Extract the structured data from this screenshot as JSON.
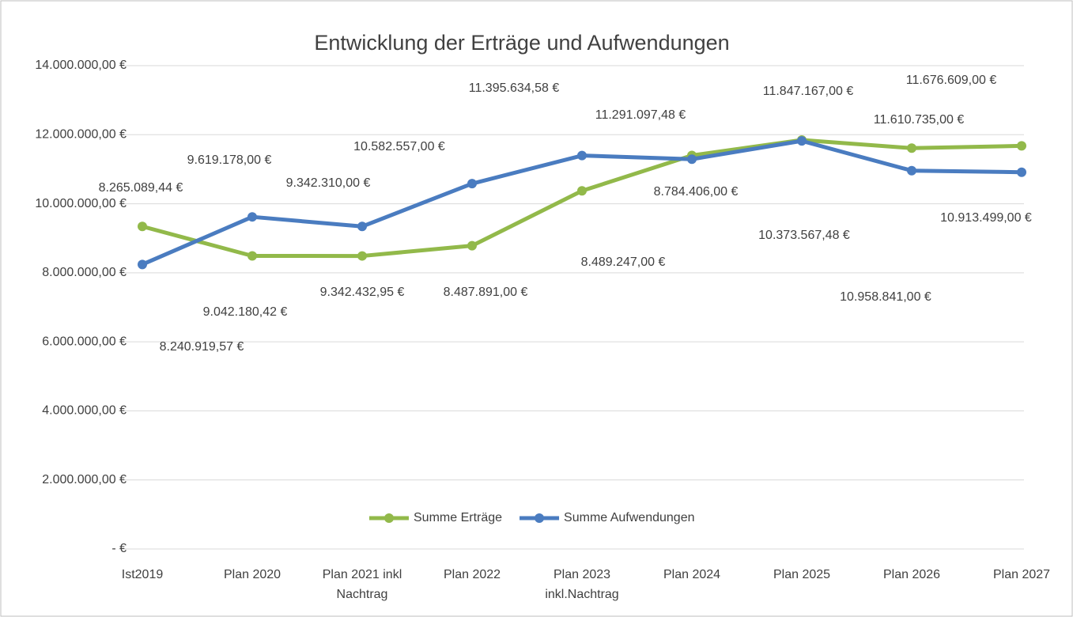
{
  "chart_data": {
    "type": "line",
    "title": "Entwicklung der Erträge und Aufwendungen",
    "categories": [
      "Ist2019",
      "Plan 2020",
      "Plan 2021 inkl\nNachtrag",
      "Plan 2022",
      "Plan 2023\ninkl.Nachtrag",
      "Plan 2024",
      "Plan 2025",
      "Plan 2026",
      "Plan 2027"
    ],
    "series": [
      {
        "name": "Summe Erträge",
        "color": "#92b94a",
        "values": [
          9342432.95,
          8489247,
          8487891,
          8784406,
          10373567.48,
          11400000,
          11847167,
          11610735,
          11676609
        ],
        "value_labels": [
          "9.342.432,95 €",
          "8.489.247,00 €",
          "8.487.891,00 €",
          "8.784.406,00 €",
          "10.373.567,48 €",
          null,
          "11.847.167,00 €",
          "11.610.735,00 €",
          "11.676.609,00 €"
        ]
      },
      {
        "name": "Summe Aufwendungen",
        "color": "#4a7cc0",
        "values": [
          8240919.57,
          9619178,
          9342310,
          10582557,
          11395634.58,
          11291097.48,
          11820000,
          10958841,
          10913499
        ],
        "value_labels": [
          "8.240.919,57 €",
          "9.619.178,00 €",
          "9.342.310,00 €",
          "10.582.557,00 €",
          "11.395.634,58 €",
          "11.291.097,48 €",
          null,
          "10.958.841,00 €",
          "10.913.499,00 €"
        ]
      }
    ],
    "annotations": [
      "8.265.089,44 €",
      "9.042.180,42 €"
    ],
    "ylim": [
      0,
      14000000
    ],
    "yticks": [
      {
        "value": 0,
        "label": "-  €"
      },
      {
        "value": 2000000,
        "label": "2.000.000,00 €"
      },
      {
        "value": 4000000,
        "label": "4.000.000,00 €"
      },
      {
        "value": 6000000,
        "label": "6.000.000,00 €"
      },
      {
        "value": 8000000,
        "label": "8.000.000,00 €"
      },
      {
        "value": 10000000,
        "label": "10.000.000,00 €"
      },
      {
        "value": 12000000,
        "label": "12.000.000,00 €"
      },
      {
        "value": 14000000,
        "label": "14.000.000,00 €"
      }
    ],
    "grid": true,
    "legend": "center"
  }
}
